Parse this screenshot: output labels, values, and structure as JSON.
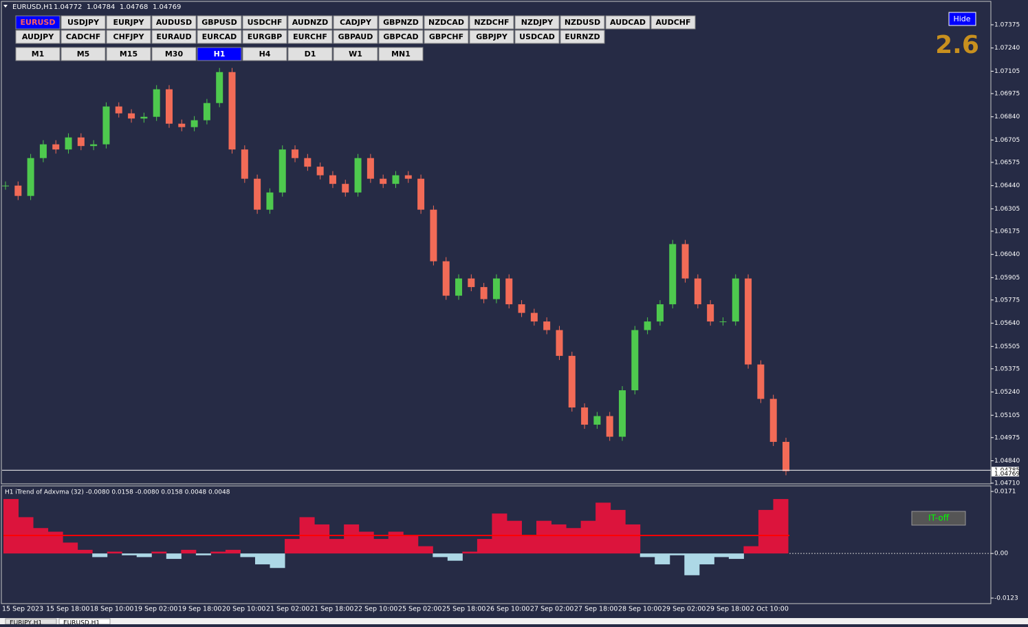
{
  "header": {
    "symbol": "EURUSD,H1",
    "open": 1.04772,
    "high": 1.04784,
    "low": 1.04768,
    "close": 1.04769
  },
  "symbol_buttons": {
    "row1": [
      "EURUSD",
      "USDJPY",
      "EURJPY",
      "AUDUSD",
      "GBPUSD",
      "USDCHF",
      "AUDNZD",
      "CADJPY",
      "GBPNZD",
      "NZDCAD",
      "NZDCHF",
      "NZDJPY",
      "NZDUSD",
      "AUDCAD",
      "AUDCHF"
    ],
    "row2": [
      "AUDJPY",
      "CADCHF",
      "CHFJPY",
      "EURAUD",
      "EURCAD",
      "EURGBP",
      "EURCHF",
      "GBPAUD",
      "GBPCAD",
      "GBPCHF",
      "GBPJPY",
      "USDCAD",
      "EURNZD"
    ],
    "active": "EURUSD"
  },
  "timeframe_buttons": {
    "items": [
      "M1",
      "M5",
      "M15",
      "M30",
      "H1",
      "H4",
      "D1",
      "W1",
      "MN1"
    ],
    "active": "H1"
  },
  "hide_button": "Hide",
  "score": 2.6,
  "it_off_button": "IT-off",
  "price_chart": {
    "ylim": [
      1.0471,
      1.07375
    ],
    "yticks": [
      {
        "value": 1.07375,
        "label": "1.07375"
      },
      {
        "value": 1.0724,
        "label": "1.07240"
      },
      {
        "value": 1.07105,
        "label": "1.07105"
      },
      {
        "value": 1.06975,
        "label": "1.06975"
      },
      {
        "value": 1.0684,
        "label": "1.06840"
      },
      {
        "value": 1.06705,
        "label": "1.06705"
      },
      {
        "value": 1.06575,
        "label": "1.06575"
      },
      {
        "value": 1.0644,
        "label": "1.06440"
      },
      {
        "value": 1.06305,
        "label": "1.06305"
      },
      {
        "value": 1.06175,
        "label": "1.06175"
      },
      {
        "value": 1.0604,
        "label": "1.06040"
      },
      {
        "value": 1.05905,
        "label": "1.05905"
      },
      {
        "value": 1.05775,
        "label": "1.05775"
      },
      {
        "value": 1.0564,
        "label": "1.05640"
      },
      {
        "value": 1.05505,
        "label": "1.05505"
      },
      {
        "value": 1.05375,
        "label": "1.05375"
      },
      {
        "value": 1.0524,
        "label": "1.05240"
      },
      {
        "value": 1.05105,
        "label": "1.05105"
      },
      {
        "value": 1.04975,
        "label": "1.04975"
      },
      {
        "value": 1.0484,
        "label": "1.04840"
      },
      {
        "value": 1.0471,
        "label": "1.04710"
      }
    ],
    "ask": 1.04785,
    "bid": 1.04769,
    "closes": [
      1.0644,
      1.0638,
      1.066,
      1.0668,
      1.0665,
      1.0672,
      1.0667,
      1.0668,
      1.069,
      1.0686,
      1.0683,
      1.0684,
      1.07,
      1.068,
      1.0678,
      1.0682,
      1.0692,
      1.071,
      1.0665,
      1.0648,
      1.063,
      1.064,
      1.0665,
      1.066,
      1.0655,
      1.065,
      1.0645,
      1.064,
      1.066,
      1.0648,
      1.0645,
      1.065,
      1.0648,
      1.063,
      1.06,
      1.058,
      1.059,
      1.0585,
      1.0578,
      1.059,
      1.0575,
      1.057,
      1.0565,
      1.056,
      1.0545,
      1.0515,
      1.0505,
      1.051,
      1.0498,
      1.0525,
      1.056,
      1.0565,
      1.0575,
      1.061,
      1.059,
      1.0575,
      1.0565,
      1.0565,
      1.059,
      1.054,
      1.052,
      1.0495,
      1.0478
    ]
  },
  "indicator": {
    "label": "H1 iTrend of Adxvma (32) -0.0080 0.0158 -0.0080 0.0158 0.0048 0.0048",
    "ylim": [
      -0.0123,
      0.0171
    ],
    "yticks": [
      0.0171,
      {
        "value": 0,
        "label": "0.00"
      },
      -0.0123
    ],
    "values": [
      0.015,
      0.01,
      0.007,
      0.006,
      0.003,
      0.001,
      -0.001,
      0.0005,
      -0.0005,
      -0.001,
      0.0005,
      -0.0015,
      0.001,
      -0.0005,
      0.0005,
      0.001,
      -0.001,
      -0.003,
      -0.004,
      0.004,
      0.01,
      0.008,
      0.004,
      0.008,
      0.006,
      0.004,
      0.006,
      0.005,
      0.002,
      -0.001,
      -0.002,
      0.0005,
      0.004,
      0.011,
      0.009,
      0.005,
      0.009,
      0.008,
      0.007,
      0.009,
      0.014,
      0.012,
      0.008,
      -0.001,
      -0.003,
      -0.0005,
      -0.006,
      -0.003,
      -0.001,
      -0.0015,
      0.002,
      0.012,
      0.015
    ]
  },
  "time_axis": [
    "15 Sep 2023",
    "15 Sep 18:00",
    "18 Sep 10:00",
    "19 Sep 02:00",
    "19 Sep 18:00",
    "20 Sep 10:00",
    "21 Sep 02:00",
    "21 Sep 18:00",
    "22 Sep 10:00",
    "25 Sep 02:00",
    "25 Sep 18:00",
    "26 Sep 10:00",
    "27 Sep 02:00",
    "27 Sep 18:00",
    "28 Sep 10:00",
    "29 Sep 02:00",
    "29 Sep 18:00",
    "2 Oct 10:00"
  ],
  "tabs": [
    "EURJPY,H1",
    "EURUSD,H1"
  ]
}
